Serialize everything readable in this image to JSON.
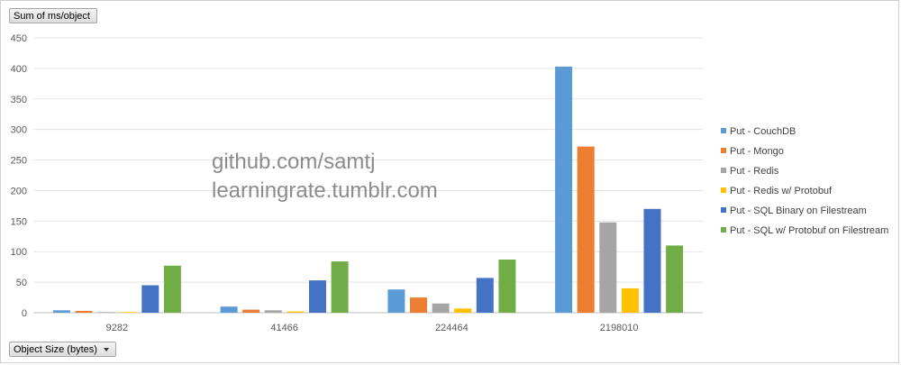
{
  "value_field_button": "Sum of ms/object",
  "axis_field_button": "Object Size (bytes)",
  "watermark": {
    "line1": "github.com/samtj",
    "line2": "learningrate.tumblr.com"
  },
  "chart_data": {
    "type": "bar",
    "title": "",
    "xlabel": "",
    "ylabel": "",
    "categories": [
      "9282",
      "41466",
      "224464",
      "2198010"
    ],
    "ylim": [
      0,
      450
    ],
    "yticks": [
      0,
      50,
      100,
      150,
      200,
      250,
      300,
      350,
      400,
      450
    ],
    "grid": true,
    "legend_position": "right",
    "series": [
      {
        "name": "Put - CouchDB",
        "color": "#5b9bd5",
        "values": [
          4,
          10,
          38,
          403
        ]
      },
      {
        "name": "Put - Mongo",
        "color": "#ed7d31",
        "values": [
          3,
          5,
          25,
          272
        ]
      },
      {
        "name": "Put - Redis",
        "color": "#a5a5a5",
        "values": [
          1,
          4,
          15,
          148
        ]
      },
      {
        "name": "Put - Redis w/ Protobuf",
        "color": "#ffc000",
        "values": [
          1,
          2,
          7,
          40
        ]
      },
      {
        "name": "Put - SQL Binary on Filestream",
        "color": "#4472c4",
        "values": [
          45,
          53,
          57,
          170
        ]
      },
      {
        "name": "Put - SQL w/ Protobuf on Filestream",
        "color": "#70ad47",
        "values": [
          77,
          84,
          87,
          110
        ]
      }
    ]
  }
}
